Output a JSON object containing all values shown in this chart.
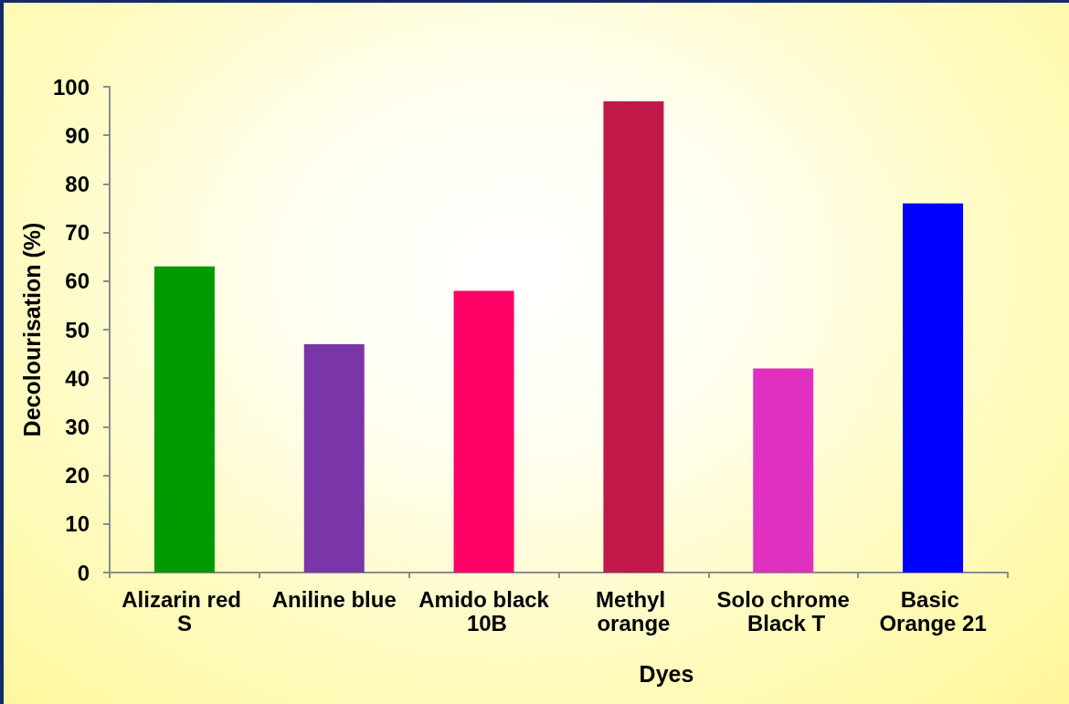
{
  "chart_data": {
    "type": "bar",
    "xlabel": "Dyes",
    "ylabel": "Decolourisation (%)",
    "categories": [
      "Alizarin red S",
      "Aniline blue",
      "Amido black 10B",
      "Methyl orange",
      "Solo chrome Black T",
      "Basic Orange 21"
    ],
    "values": [
      63,
      47,
      58,
      97,
      42,
      76
    ],
    "colors": [
      "#009a00",
      "#7a35a8",
      "#ff0066",
      "#c01848",
      "#e030c0",
      "#0000ff"
    ],
    "ylim": [
      0,
      100
    ],
    "yticks": [
      0,
      10,
      20,
      30,
      40,
      50,
      60,
      70,
      80,
      90,
      100
    ],
    "grid": false
  }
}
